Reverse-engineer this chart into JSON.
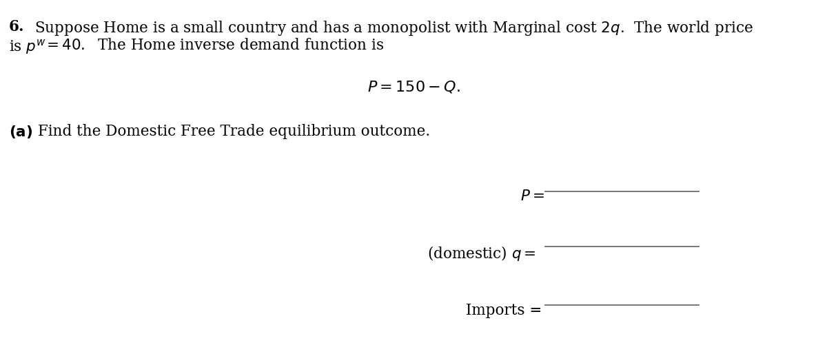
{
  "background_color": "#ffffff",
  "figsize": [
    12.0,
    5.01
  ],
  "dpi": 100,
  "text_color": "#000000",
  "line_color": "#555555",
  "font_size_main": 15.5,
  "font_size_center": 16.0,
  "font_size_labels": 15.5
}
